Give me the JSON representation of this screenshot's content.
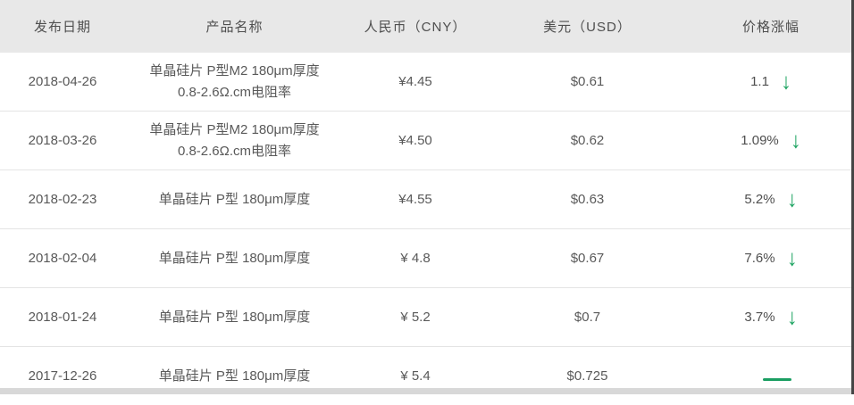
{
  "table": {
    "columns": [
      {
        "key": "date",
        "label": "发布日期"
      },
      {
        "key": "product",
        "label": "产品名称"
      },
      {
        "key": "cny",
        "label": "人民币（CNY）"
      },
      {
        "key": "usd",
        "label": "美元（USD）"
      },
      {
        "key": "change",
        "label": "价格涨幅"
      }
    ],
    "rows": [
      {
        "date": "2018-04-26",
        "product": "单晶硅片 P型M2 180μm厚度 0.8-2.6Ω.cm电阻率",
        "cny": "¥4.45",
        "usd": "$0.61",
        "change": "1.1",
        "indicator": "down-arrow"
      },
      {
        "date": "2018-03-26",
        "product": "单晶硅片 P型M2 180μm厚度 0.8-2.6Ω.cm电阻率",
        "cny": "¥4.50",
        "usd": "$0.62",
        "change": "1.09%",
        "indicator": "down-arrow"
      },
      {
        "date": "2018-02-23",
        "product": "单晶硅片 P型 180μm厚度",
        "cny": "¥4.55",
        "usd": "$0.63",
        "change": "5.2%",
        "indicator": "down-arrow"
      },
      {
        "date": "2018-02-04",
        "product": "单晶硅片 P型 180μm厚度",
        "cny": "¥ 4.8",
        "usd": "$0.67",
        "change": "7.6%",
        "indicator": "down-arrow"
      },
      {
        "date": "2018-01-24",
        "product": "单晶硅片 P型 180μm厚度",
        "cny": "¥ 5.2",
        "usd": "$0.7",
        "change": "3.7%",
        "indicator": "down-arrow"
      },
      {
        "date": "2017-12-26",
        "product": "单晶硅片 P型 180μm厚度",
        "cny": "¥ 5.4",
        "usd": "$0.725",
        "change": "",
        "indicator": "flat-dash"
      }
    ]
  },
  "icons": {
    "down_arrow": "↓",
    "flat_dash": "—"
  },
  "colors": {
    "accent_green": "#1ea462",
    "dash_green": "#1a9e62",
    "header_bg": "#e8e8e8",
    "row_divider": "#e4e4e4",
    "body_text": "#595959",
    "header_text": "#4f4f4f",
    "bottom_band": "#d8d8d8",
    "right_edge": "#454545"
  }
}
